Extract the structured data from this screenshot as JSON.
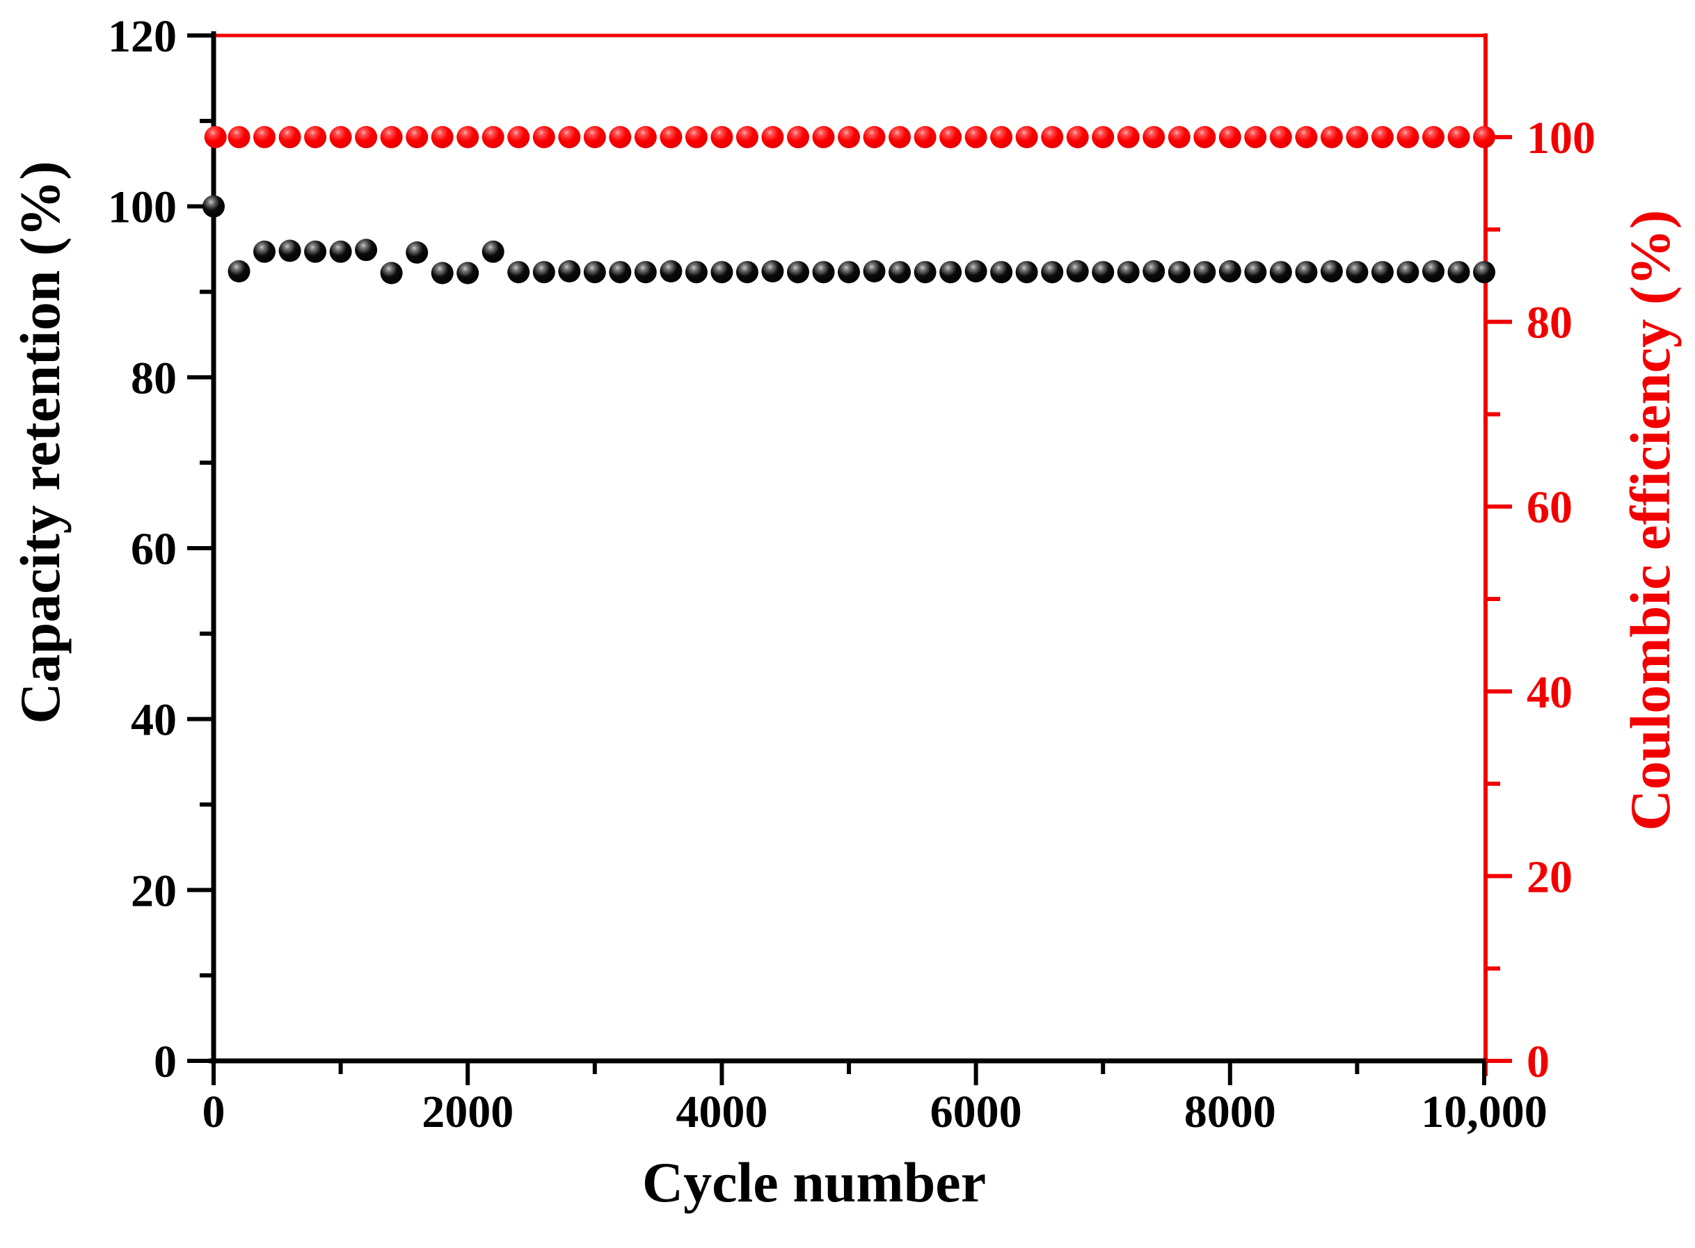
{
  "figure": {
    "background": "#ffffff",
    "x_title": "Cycle number",
    "left_title": "Capacity retention (%)",
    "right_title": "Coulombic efficiency (%)"
  },
  "colors": {
    "black_axis": "#000000",
    "red_axis": "#f20000",
    "black_marker": "#000000",
    "red_marker": "#ff0000",
    "background": "#ffffff"
  },
  "chart_data": {
    "type": "scatter",
    "title": "",
    "xlabel": "Cycle number",
    "x_axis": {
      "range": [
        0,
        10000
      ],
      "major_ticks": [
        {
          "value": 0,
          "label": "0"
        },
        {
          "value": 2000,
          "label": "2000"
        },
        {
          "value": 4000,
          "label": "4000"
        },
        {
          "value": 6000,
          "label": "6000"
        },
        {
          "value": 8000,
          "label": "8000"
        },
        {
          "value": 10000,
          "label": "10,000"
        }
      ],
      "minor_ticks": [
        1000,
        3000,
        5000,
        7000,
        9000
      ]
    },
    "left_axis": {
      "title": "Capacity retention (%)",
      "color": "#000000",
      "range": [
        0,
        120
      ],
      "major_ticks": [
        {
          "value": 0,
          "label": "0"
        },
        {
          "value": 20,
          "label": "20"
        },
        {
          "value": 40,
          "label": "40"
        },
        {
          "value": 60,
          "label": "60"
        },
        {
          "value": 80,
          "label": "80"
        },
        {
          "value": 100,
          "label": "100"
        },
        {
          "value": 120,
          "label": "120"
        }
      ],
      "minor_ticks": [
        10,
        30,
        50,
        70,
        90,
        110
      ]
    },
    "right_axis": {
      "title": "Coulombic efficiency (%)",
      "color": "#f20000",
      "range": [
        0,
        111
      ],
      "major_ticks": [
        {
          "value": 0,
          "label": "0"
        },
        {
          "value": 20,
          "label": "20"
        },
        {
          "value": 40,
          "label": "40"
        },
        {
          "value": 60,
          "label": "60"
        },
        {
          "value": 80,
          "label": "80"
        },
        {
          "value": 100,
          "label": "100"
        }
      ],
      "minor_ticks": [
        10,
        30,
        50,
        70,
        90
      ]
    },
    "legend": {
      "visible": false
    },
    "grid": false,
    "series": [
      {
        "name": "Capacity retention",
        "axis": "left",
        "marker": "sphere",
        "color": "#000000",
        "points": [
          [
            0,
            100.0
          ],
          [
            200,
            92.4
          ],
          [
            400,
            94.7
          ],
          [
            600,
            94.8
          ],
          [
            800,
            94.7
          ],
          [
            1000,
            94.7
          ],
          [
            1200,
            94.9
          ],
          [
            1400,
            92.2
          ],
          [
            1600,
            94.6
          ],
          [
            1800,
            92.2
          ],
          [
            2000,
            92.2
          ],
          [
            2200,
            94.7
          ],
          [
            2400,
            92.3
          ],
          [
            2600,
            92.3
          ],
          [
            2800,
            92.4
          ],
          [
            3000,
            92.3
          ],
          [
            3200,
            92.3
          ],
          [
            3400,
            92.3
          ],
          [
            3600,
            92.4
          ],
          [
            3800,
            92.3
          ],
          [
            4000,
            92.3
          ],
          [
            4200,
            92.3
          ],
          [
            4400,
            92.4
          ],
          [
            4600,
            92.3
          ],
          [
            4800,
            92.3
          ],
          [
            5000,
            92.3
          ],
          [
            5200,
            92.4
          ],
          [
            5400,
            92.3
          ],
          [
            5600,
            92.3
          ],
          [
            5800,
            92.3
          ],
          [
            6000,
            92.4
          ],
          [
            6200,
            92.3
          ],
          [
            6400,
            92.3
          ],
          [
            6600,
            92.3
          ],
          [
            6800,
            92.4
          ],
          [
            7000,
            92.3
          ],
          [
            7200,
            92.3
          ],
          [
            7400,
            92.4
          ],
          [
            7600,
            92.3
          ],
          [
            7800,
            92.3
          ],
          [
            8000,
            92.4
          ],
          [
            8200,
            92.3
          ],
          [
            8400,
            92.3
          ],
          [
            8600,
            92.3
          ],
          [
            8800,
            92.4
          ],
          [
            9000,
            92.3
          ],
          [
            9200,
            92.3
          ],
          [
            9400,
            92.3
          ],
          [
            9600,
            92.4
          ],
          [
            9800,
            92.3
          ],
          [
            10000,
            92.3
          ]
        ]
      },
      {
        "name": "Coulombic efficiency",
        "axis": "right",
        "marker": "sphere",
        "color": "#ff0000",
        "points": [
          [
            15,
            100.0
          ],
          [
            200,
            100.0
          ],
          [
            400,
            100.0
          ],
          [
            600,
            100.0
          ],
          [
            800,
            100.0
          ],
          [
            1000,
            100.0
          ],
          [
            1200,
            100.0
          ],
          [
            1400,
            100.0
          ],
          [
            1600,
            100.0
          ],
          [
            1800,
            100.0
          ],
          [
            2000,
            100.0
          ],
          [
            2200,
            100.0
          ],
          [
            2400,
            100.0
          ],
          [
            2600,
            100.0
          ],
          [
            2800,
            100.0
          ],
          [
            3000,
            100.0
          ],
          [
            3200,
            100.0
          ],
          [
            3400,
            100.0
          ],
          [
            3600,
            100.0
          ],
          [
            3800,
            100.0
          ],
          [
            4000,
            100.0
          ],
          [
            4200,
            100.0
          ],
          [
            4400,
            100.0
          ],
          [
            4600,
            100.0
          ],
          [
            4800,
            100.0
          ],
          [
            5000,
            100.0
          ],
          [
            5200,
            100.0
          ],
          [
            5400,
            100.0
          ],
          [
            5600,
            100.0
          ],
          [
            5800,
            100.0
          ],
          [
            6000,
            100.0
          ],
          [
            6200,
            100.0
          ],
          [
            6400,
            100.0
          ],
          [
            6600,
            100.0
          ],
          [
            6800,
            100.0
          ],
          [
            7000,
            100.0
          ],
          [
            7200,
            100.0
          ],
          [
            7400,
            100.0
          ],
          [
            7600,
            100.0
          ],
          [
            7800,
            100.0
          ],
          [
            8000,
            100.0
          ],
          [
            8200,
            100.0
          ],
          [
            8400,
            100.0
          ],
          [
            8600,
            100.0
          ],
          [
            8800,
            100.0
          ],
          [
            9000,
            100.0
          ],
          [
            9200,
            100.0
          ],
          [
            9400,
            100.0
          ],
          [
            9600,
            100.0
          ],
          [
            9800,
            100.0
          ],
          [
            10000,
            100.0
          ]
        ]
      }
    ]
  }
}
